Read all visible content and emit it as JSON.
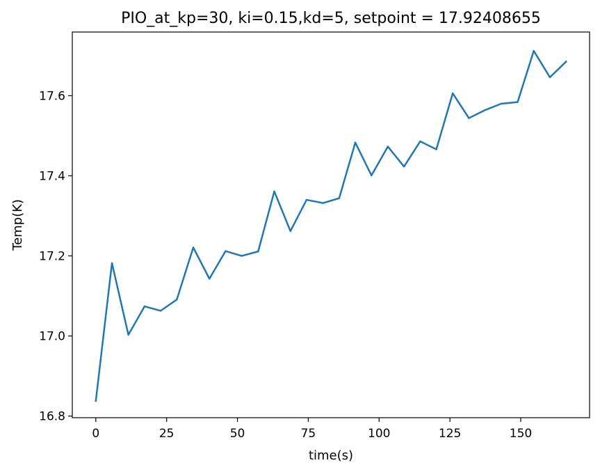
{
  "chart_data": {
    "type": "line",
    "title": "PIO_at_kp=30, ki=0.15,kd=5, setpoint = 17.92408655",
    "xlabel": "time(s)",
    "ylabel": "Temp(K)",
    "xlim": [
      -8.3,
      174.3
    ],
    "ylim": [
      16.796,
      17.759
    ],
    "xticks": [
      0,
      25,
      50,
      75,
      100,
      125,
      150
    ],
    "xtick_labels": [
      "0",
      "25",
      "50",
      "75",
      "100",
      "125",
      "150"
    ],
    "yticks": [
      16.8,
      17.0,
      17.2,
      17.4,
      17.6
    ],
    "ytick_labels": [
      "16.8",
      "17.0",
      "17.2",
      "17.4",
      "17.6"
    ],
    "grid": false,
    "series": [
      {
        "color": "#1f77b4",
        "x": [
          0,
          5.7,
          11.5,
          17.2,
          22.9,
          28.6,
          34.4,
          40.1,
          45.8,
          51.5,
          57.3,
          63.0,
          68.7,
          74.4,
          80.2,
          85.9,
          91.6,
          97.3,
          103.1,
          108.8,
          114.5,
          120.2,
          126.0,
          131.7,
          137.4,
          143.1,
          148.9,
          154.6,
          160.3,
          166.0
        ],
        "y": [
          16.838,
          17.182,
          17.003,
          17.074,
          17.063,
          17.091,
          17.221,
          17.143,
          17.212,
          17.2,
          17.211,
          17.361,
          17.262,
          17.34,
          17.332,
          17.344,
          17.483,
          17.401,
          17.473,
          17.423,
          17.486,
          17.466,
          17.606,
          17.544,
          17.564,
          17.58,
          17.584,
          17.712,
          17.646,
          17.685
        ]
      }
    ]
  }
}
